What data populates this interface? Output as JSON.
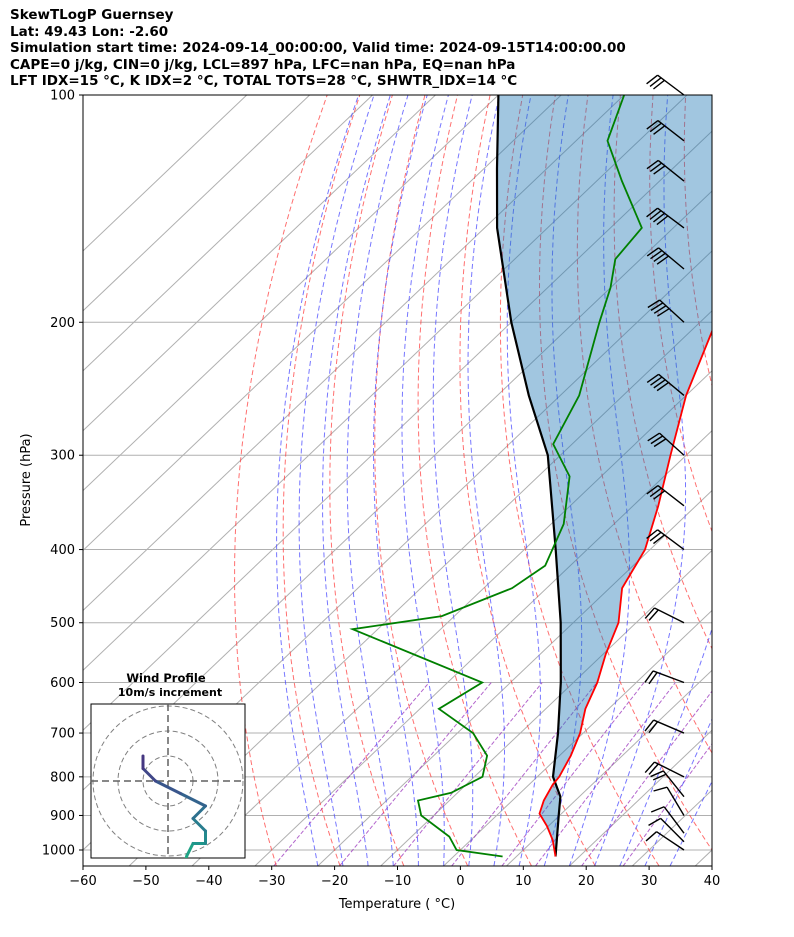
{
  "header": {
    "line1": "SkewTLogP Guernsey",
    "line2": "Lat: 49.43   Lon: -2.60",
    "line3": "Simulation start time: 2024-09-14_00:00:00, Valid time: 2024-09-15T14:00:00.00",
    "line4": "CAPE=0 j/kg, CIN=0 j/kg, LCL=897 hPa, LFC=nan hPa, EQ=nan hPa",
    "line5": "LFT IDX=15 °C, K IDX=2 °C, TOTAL TOTS=28 °C, SHWTR_IDX=14 °C"
  },
  "chart_data": {
    "type": "line",
    "subtype": "skew-T log-P diagram",
    "xlabel": "Temperature ( °C)",
    "ylabel": "Pressure (hPa)",
    "xlim": [
      -60,
      40
    ],
    "ylim": [
      1050,
      100
    ],
    "yscale": "log",
    "x_ticks": [
      "−60",
      "−50",
      "−40",
      "−30",
      "−20",
      "−10",
      "0",
      "10",
      "20",
      "30",
      "40"
    ],
    "y_ticks": [
      "100",
      "200",
      "300",
      "400",
      "500",
      "600",
      "700",
      "800",
      "900",
      "1000"
    ],
    "grid": true,
    "series": [
      {
        "color": "#ff0000",
        "role": "temperature",
        "points": [
          [
            16.2,
            1020
          ],
          [
            13,
            970
          ],
          [
            9.8,
            930
          ],
          [
            6.5,
            895
          ],
          [
            5,
            860
          ],
          [
            3.8,
            820
          ],
          [
            3.5,
            800
          ],
          [
            1.8,
            750
          ],
          [
            -0.5,
            700
          ],
          [
            -3.7,
            650
          ],
          [
            -6.2,
            600
          ],
          [
            -9.6,
            550
          ],
          [
            -12.8,
            500
          ],
          [
            -18,
            450
          ],
          [
            -20.8,
            400
          ],
          [
            -26,
            350
          ],
          [
            -32.5,
            300
          ],
          [
            -40,
            250
          ],
          [
            -47.5,
            200
          ],
          [
            -51.5,
            180
          ],
          [
            -54,
            165
          ],
          [
            -56.5,
            150
          ],
          [
            -60,
            140
          ],
          [
            -63,
            130
          ],
          [
            -70,
            110
          ],
          [
            -75.5,
            100
          ]
        ]
      },
      {
        "color": "#008000",
        "role": "dewpoint",
        "points": [
          [
            7.8,
            1020
          ],
          [
            -0.6,
            1000
          ],
          [
            -4,
            960
          ],
          [
            -12,
            900
          ],
          [
            -15,
            860
          ],
          [
            -11,
            840
          ],
          [
            -8.7,
            800
          ],
          [
            -11.5,
            750
          ],
          [
            -17.5,
            700
          ],
          [
            -27,
            650
          ],
          [
            -24.5,
            600
          ],
          [
            -54,
            510
          ],
          [
            -42,
            490
          ],
          [
            -35.5,
            450
          ],
          [
            -34,
            420
          ],
          [
            -38,
            370
          ],
          [
            -45,
            320
          ],
          [
            -53,
            290
          ],
          [
            -57,
            250
          ],
          [
            -66,
            200
          ],
          [
            -70,
            180
          ],
          [
            -74,
            165
          ],
          [
            -75,
            150
          ],
          [
            -86,
            130
          ],
          [
            -95,
            115
          ],
          [
            -100,
            100
          ]
        ]
      },
      {
        "color": "#000000",
        "role": "parcel path",
        "points": [
          [
            16.2,
            1020
          ],
          [
            9.7,
            897
          ],
          [
            7,
            850
          ],
          [
            2.5,
            800
          ],
          [
            -4,
            700
          ],
          [
            -12,
            600
          ],
          [
            -22,
            500
          ],
          [
            -35,
            400
          ],
          [
            -52,
            300
          ],
          [
            -65,
            250
          ],
          [
            -80,
            200
          ],
          [
            -98,
            150
          ],
          [
            -108,
            125
          ],
          [
            -120,
            100
          ]
        ]
      }
    ],
    "shaded_region": {
      "between": [
        "temperature",
        "parcel path"
      ],
      "color": "#1f77b4"
    },
    "reference_lines": [
      "isotherms",
      "dry adiabats",
      "moist adiabats",
      "mixing ratio lines"
    ],
    "wind_barbs": [
      {
        "p": 1000,
        "u": -3,
        "v": 2
      },
      {
        "p": 975,
        "u": -3,
        "v": 3
      },
      {
        "p": 950,
        "u": -3,
        "v": 4
      },
      {
        "p": 900,
        "u": -3,
        "v": 5
      },
      {
        "p": 850,
        "u": -4,
        "v": 5
      },
      {
        "p": 800,
        "u": -6,
        "v": 3
      },
      {
        "p": 700,
        "u": -7,
        "v": 3
      },
      {
        "p": 600,
        "u": -8,
        "v": 3
      },
      {
        "p": 500,
        "u": -8,
        "v": 4
      },
      {
        "p": 400,
        "u": -8,
        "v": 6
      },
      {
        "p": 350,
        "u": -9,
        "v": 7
      },
      {
        "p": 300,
        "u": -10,
        "v": 9
      },
      {
        "p": 250,
        "u": -12,
        "v": 10
      },
      {
        "p": 200,
        "u": -12,
        "v": 11
      },
      {
        "p": 170,
        "u": -12,
        "v": 10
      },
      {
        "p": 150,
        "u": -12,
        "v": 9
      },
      {
        "p": 130,
        "u": -10,
        "v": 8
      },
      {
        "p": 115,
        "u": -9,
        "v": 7
      },
      {
        "p": 100,
        "u": -8,
        "v": 6
      }
    ],
    "inset": {
      "title": "Wind Profile",
      "subtitle": "10m/s increment",
      "type": "hodograph",
      "points": [
        [
          2,
          -12
        ],
        [
          4,
          -12
        ],
        [
          6,
          -11.5
        ],
        [
          5,
          -11
        ],
        [
          3,
          -11
        ],
        [
          1,
          -11
        ],
        [
          1,
          -8
        ],
        [
          1.5,
          -6
        ],
        [
          2,
          -5
        ],
        [
          3,
          -5
        ],
        [
          3,
          -4
        ],
        [
          2,
          -3
        ],
        [
          3,
          -2
        ],
        [
          1,
          -1
        ],
        [
          -1,
          0
        ],
        [
          -2,
          1
        ],
        [
          -2,
          2
        ]
      ]
    }
  }
}
